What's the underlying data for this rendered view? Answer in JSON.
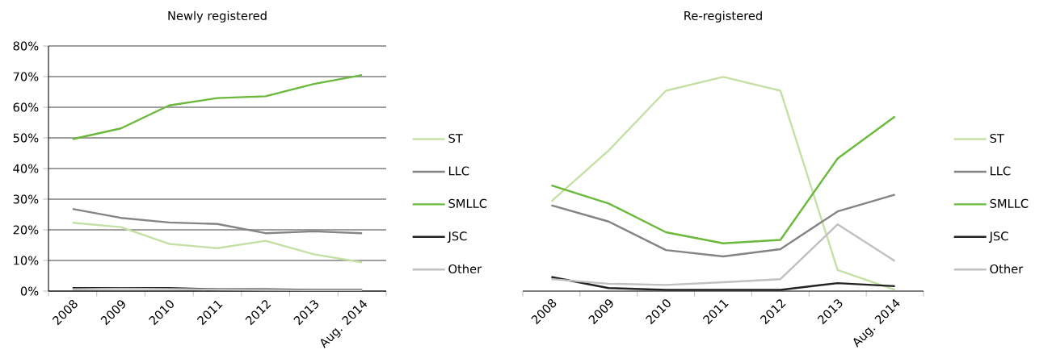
{
  "chart_data": [
    {
      "type": "line",
      "title": "Newly registered",
      "categories": [
        "2008",
        "2009",
        "2010",
        "2011",
        "2012",
        "2013",
        "Aug. 2014"
      ],
      "ylim": [
        0,
        80
      ],
      "yticks": [
        {
          "value": 0,
          "label": "0%"
        },
        {
          "value": 10,
          "label": "10%"
        },
        {
          "value": 20,
          "label": "20%"
        },
        {
          "value": 30,
          "label": "30%"
        },
        {
          "value": 40,
          "label": "40%"
        },
        {
          "value": 50,
          "label": "50%"
        },
        {
          "value": 60,
          "label": "60%"
        },
        {
          "value": 70,
          "label": "70%"
        },
        {
          "value": 80,
          "label": "80%"
        }
      ],
      "grid": "y",
      "legend": "right",
      "series": [
        {
          "name": "ST",
          "color": "#c5e0a5",
          "values": [
            22.3,
            20.9,
            15.4,
            14.0,
            16.4,
            12.0,
            9.4
          ]
        },
        {
          "name": "LLC",
          "color": "#848484",
          "values": [
            26.8,
            23.9,
            22.4,
            21.9,
            18.9,
            19.5,
            18.9
          ]
        },
        {
          "name": "SMLLC",
          "color": "#6ab93b",
          "values": [
            49.6,
            53.1,
            60.6,
            63.0,
            63.6,
            67.6,
            70.5
          ]
        },
        {
          "name": "JSC",
          "color": "#222222",
          "values": [
            1.0,
            1.0,
            1.0,
            0.6,
            0.6,
            0.4,
            0.4
          ]
        },
        {
          "name": "Other",
          "color": "#c0c0c0",
          "values": [
            0.6,
            0.8,
            0.7,
            0.5,
            0.4,
            0.3,
            0.3
          ]
        }
      ]
    },
    {
      "type": "line",
      "title": "Re-registered",
      "categories": [
        "2008",
        "2009",
        "2010",
        "2011",
        "2012",
        "2013",
        "Aug. 2014"
      ],
      "ylim": [
        0,
        80
      ],
      "tick_labels": "x",
      "grid": "y",
      "legend": "right",
      "yticks": [
        {
          "value": 0,
          "label": null
        },
        {
          "value": 10,
          "label": null
        },
        {
          "value": 20,
          "label": null
        },
        {
          "value": 30,
          "label": null
        },
        {
          "value": 40,
          "label": null
        },
        {
          "value": 50,
          "label": null
        },
        {
          "value": 60,
          "label": null
        },
        {
          "value": 70,
          "label": null
        },
        {
          "value": 80,
          "label": null
        }
      ],
      "series": [
        {
          "name": "ST",
          "color": "#c5e0a5",
          "values": [
            29.3,
            45.9,
            65.4,
            69.9,
            65.4,
            6.9,
            0.4
          ]
        },
        {
          "name": "LLC",
          "color": "#848484",
          "values": [
            28.0,
            22.7,
            13.4,
            11.3,
            13.7,
            26.0,
            31.5
          ]
        },
        {
          "name": "SMLLC",
          "color": "#6ab93b",
          "values": [
            34.5,
            28.6,
            19.2,
            15.6,
            16.7,
            43.3,
            57.0
          ]
        },
        {
          "name": "JSC",
          "color": "#222222",
          "values": [
            4.6,
            1.0,
            0.4,
            0.4,
            0.4,
            2.6,
            1.6
          ]
        },
        {
          "name": "Other",
          "color": "#c0c0c0",
          "values": [
            3.9,
            2.4,
            2.0,
            2.9,
            3.9,
            21.8,
            9.8
          ]
        }
      ]
    }
  ]
}
